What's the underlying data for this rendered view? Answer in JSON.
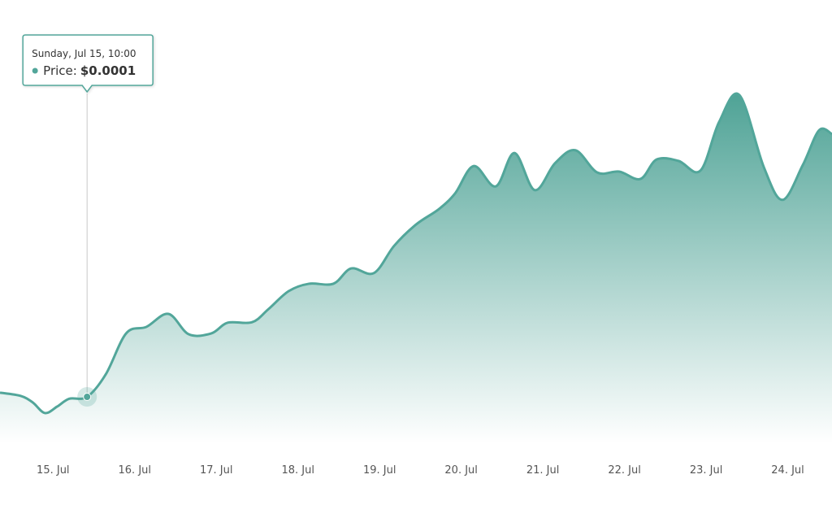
{
  "chart_data": {
    "type": "area",
    "x": [
      14.35,
      14.602,
      14.751,
      14.9,
      15.05,
      15.199,
      15.4167,
      15.647,
      15.896,
      16.144,
      16.413,
      16.662,
      16.94,
      17.139,
      17.438,
      17.637,
      17.886,
      18.134,
      18.433,
      18.652,
      18.93,
      19.179,
      19.448,
      19.726,
      19.925,
      20.154,
      20.423,
      20.652,
      20.9,
      21.149,
      21.398,
      21.667,
      21.935,
      22.194,
      22.393,
      22.662,
      22.93,
      23.159,
      23.408,
      23.706,
      23.935,
      24.184,
      24.383,
      24.542
    ],
    "series": [
      {
        "color": "#52a69a",
        "values": [
          0.000109,
          0.000102,
          8.8e-05,
          6.5e-05,
          7.9e-05,
          9.6e-05,
          0.0001,
          0.000149,
          0.000237,
          0.000251,
          0.000279,
          0.000235,
          0.000237,
          0.00026,
          0.000261,
          0.000289,
          0.000328,
          0.000344,
          0.000344,
          0.000377,
          0.000367,
          0.000426,
          0.000472,
          0.000505,
          0.000539,
          0.000598,
          0.000554,
          0.000626,
          0.000546,
          0.000604,
          0.000632,
          0.000584,
          0.000586,
          0.00057,
          0.000612,
          0.000609,
          0.000588,
          0.000693,
          0.000751,
          0.000596,
          0.000525,
          0.0006,
          0.000675,
          0.000667
        ]
      }
    ],
    "xlim": [
      14.35,
      24.542
    ],
    "ylim": [
      0,
      0.00095
    ],
    "xticks": [
      {
        "value": 15,
        "label": "15. Jul"
      },
      {
        "value": 16,
        "label": "16. Jul"
      },
      {
        "value": 17,
        "label": "17. Jul"
      },
      {
        "value": 18,
        "label": "18. Jul"
      },
      {
        "value": 19,
        "label": "19. Jul"
      },
      {
        "value": 20,
        "label": "20. Jul"
      },
      {
        "value": 21,
        "label": "21. Jul"
      },
      {
        "value": 22,
        "label": "22. Jul"
      },
      {
        "value": 23,
        "label": "23. Jul"
      },
      {
        "value": 24,
        "label": "24. Jul"
      }
    ],
    "tooltip": {
      "x": 15.4167,
      "title": "Sunday, Jul 15, 10:00",
      "series_label": "Price:",
      "value_label": "$0.0001"
    }
  }
}
